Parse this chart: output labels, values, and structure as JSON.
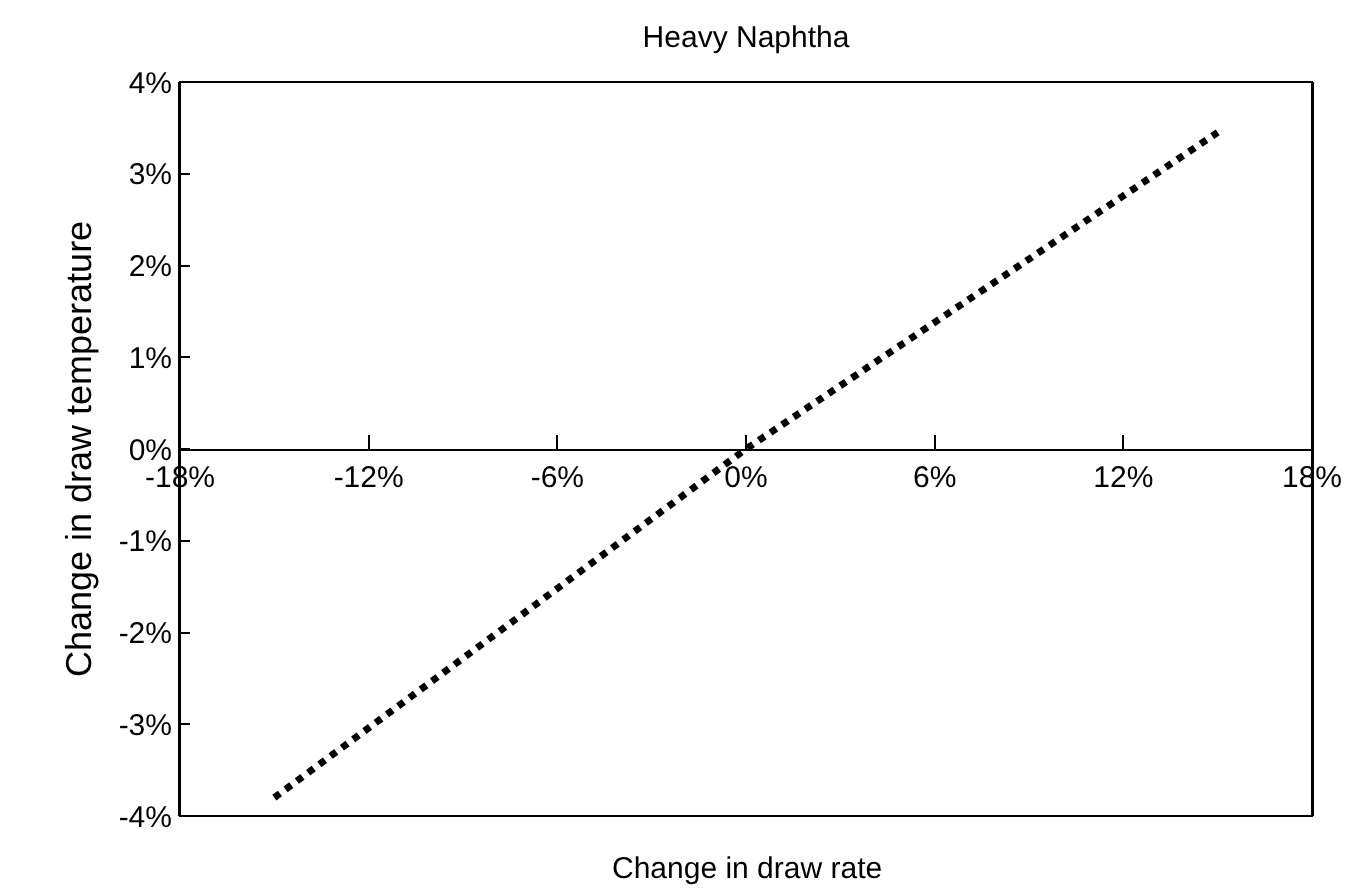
{
  "chart_data": {
    "type": "line",
    "title": "Heavy Naphtha",
    "xlabel": "Change in draw rate",
    "ylabel": "Change in draw temperature",
    "x": [
      -15,
      0,
      15
    ],
    "series": [
      {
        "color": "#000000",
        "values": [
          -3.8,
          0,
          3.45
        ]
      }
    ],
    "line_style": "dotted",
    "marker": "none",
    "xlim": [
      -18,
      18
    ],
    "xticks": [
      {
        "value": -18,
        "label": "-18%"
      },
      {
        "value": -12,
        "label": "-12%"
      },
      {
        "value": -6,
        "label": "-6%"
      },
      {
        "value": 0,
        "label": "0%"
      },
      {
        "value": 6,
        "label": "6%"
      },
      {
        "value": 12,
        "label": "12%"
      },
      {
        "value": 18,
        "label": "18%"
      }
    ],
    "ylim": [
      -4,
      4
    ],
    "yticks": [
      {
        "value": -4,
        "label": "-4%"
      },
      {
        "value": -3,
        "label": "-3%"
      },
      {
        "value": -2,
        "label": "-2%"
      },
      {
        "value": -1,
        "label": "-1%"
      },
      {
        "value": 0,
        "label": "0%"
      },
      {
        "value": 1,
        "label": "1%"
      },
      {
        "value": 2,
        "label": "2%"
      },
      {
        "value": 3,
        "label": "3%"
      },
      {
        "value": 4,
        "label": "4%"
      }
    ]
  }
}
